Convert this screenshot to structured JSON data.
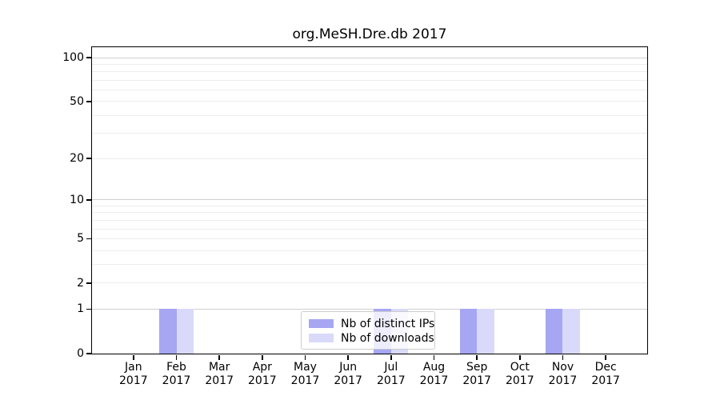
{
  "chart_data": {
    "type": "bar",
    "title": "org.MeSH.Dre.db 2017",
    "categories": [
      "Jan 2017",
      "Feb 2017",
      "Mar 2017",
      "Apr 2017",
      "May 2017",
      "Jun 2017",
      "Jul 2017",
      "Aug 2017",
      "Sep 2017",
      "Oct 2017",
      "Nov 2017",
      "Dec 2017"
    ],
    "series": [
      {
        "name": "Nb of distinct IPs",
        "color": "#a6a6f3",
        "values": [
          0,
          1,
          0,
          0,
          0,
          0,
          1,
          0,
          1,
          0,
          1,
          0
        ]
      },
      {
        "name": "Nb of downloads",
        "color": "#d9d9f9",
        "values": [
          0,
          1,
          0,
          0,
          0,
          0,
          1,
          0,
          1,
          0,
          1,
          0
        ]
      }
    ],
    "xlabel": "",
    "ylabel": "",
    "yscale": "log1p",
    "ylim": [
      0,
      118
    ],
    "yticks": [
      0,
      1,
      2,
      5,
      10,
      20,
      50,
      100
    ],
    "major_gridlines": [
      1,
      10,
      100
    ],
    "minor_gridlines": [
      2,
      3,
      4,
      5,
      6,
      7,
      8,
      9,
      20,
      30,
      40,
      50,
      60,
      70,
      80,
      90
    ],
    "grid": "on",
    "legend_position": "lower center",
    "colors": {
      "axis": "#000000",
      "major_grid": "#cfcfcf",
      "minor_grid": "#ededed",
      "legend_border": "#cccccc",
      "legend_background": "rgba(255,255,255,0.8)"
    }
  }
}
